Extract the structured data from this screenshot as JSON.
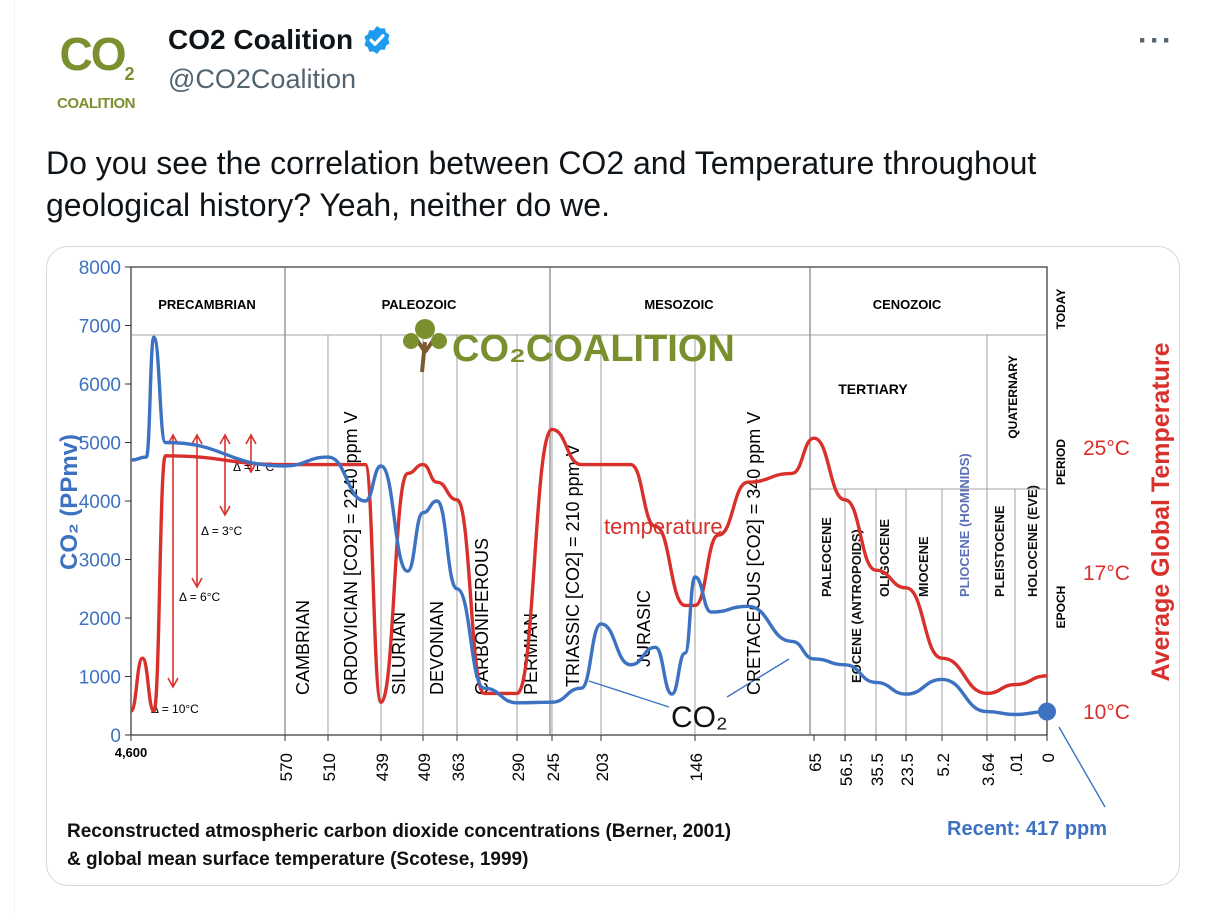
{
  "tweet": {
    "display_name": "CO2 Coalition",
    "handle": "@CO2Coalition",
    "avatar_text": "CO",
    "avatar_sub": "2",
    "avatar_subtext": "COALITION",
    "more_label": "···",
    "text": "Do you see the correlation between CO2 and Temperature throughout geological history? Yeah, neither do we."
  },
  "colors": {
    "co2": "#3d72c2",
    "temperature": "#d8312c",
    "verified": "#1d9bf0",
    "brand": "#7a8f2e"
  },
  "chart_data": {
    "type": "line",
    "ylabel": "CO₂ (PPmv)",
    "ylabel_right": "Average Global Temperature",
    "y_ticks": [
      "8000",
      "7000",
      "6000",
      "5000",
      "4000",
      "3000",
      "2000",
      "1000",
      "0"
    ],
    "ylim": [
      0,
      8000
    ],
    "temp_ticks": [
      "25°C",
      "17°C",
      "10°C"
    ],
    "x_ticks": [
      "4,600",
      "570",
      "510",
      "439",
      "409",
      "363",
      "290",
      "245",
      "203",
      "146",
      "65",
      "56.5",
      "35.5",
      "23.5",
      "5.2",
      "3.64",
      ".01",
      "0"
    ],
    "eras": [
      "PRECAMBRIAN",
      "PALEOZOIC",
      "MESOZOIC",
      "CENOZOIC"
    ],
    "right_labels": [
      "TODAY",
      "PERIOD",
      "EPOCH"
    ],
    "tertiary": "TERTIARY",
    "quaternary": "QUATERNARY",
    "periods": [
      "CAMBRIAN",
      "ORDOVICIAN [CO2] = 2240 ppm V",
      "SILURIAN",
      "DEVONIAN",
      "CARBONIFEROUS",
      "PERMIAN",
      "TRIASSIC [CO2] = 210 ppm V",
      "JURASIC",
      "CRETACEOUS [CO2] = 340 ppm V"
    ],
    "epochs": [
      "PALEOCENE",
      "EOCENE (ANTROPOIDS)",
      "OLIGOCENE",
      "MIOCENE",
      "PLIOCENE (HOMINIDS)",
      "PLEISTOCENE",
      "HOLOCENE (EVE)"
    ],
    "deltas": [
      "Δ = 1°C",
      "Δ = 3°C",
      "Δ = 6°C",
      "Δ = 10°C"
    ],
    "annotation_temperature": "temperature",
    "annotation_co2": "CO₂",
    "watermark": "CO₂COALITION",
    "recent_label": "Recent: 417 ppm",
    "caption_line1": "Reconstructed atmospheric carbon dioxide concentrations (Berner, 2001)",
    "caption_line2": "& global mean surface temperature (Scotese, 1999)",
    "series": [
      {
        "name": "CO₂",
        "points": [
          [
            4600,
            4700
          ],
          [
            4200,
            4750
          ],
          [
            4000,
            6800
          ],
          [
            3700,
            5000
          ],
          [
            570,
            4600
          ],
          [
            510,
            4750
          ],
          [
            460,
            4000
          ],
          [
            439,
            4600
          ],
          [
            420,
            2800
          ],
          [
            409,
            3800
          ],
          [
            390,
            4000
          ],
          [
            363,
            2500
          ],
          [
            330,
            800
          ],
          [
            290,
            550
          ],
          [
            245,
            560
          ],
          [
            220,
            800
          ],
          [
            203,
            1900
          ],
          [
            185,
            1200
          ],
          [
            170,
            1500
          ],
          [
            160,
            700
          ],
          [
            152,
            1400
          ],
          [
            146,
            2700
          ],
          [
            135,
            2100
          ],
          [
            110,
            2200
          ],
          [
            80,
            1600
          ],
          [
            65,
            1300
          ],
          [
            56.5,
            1200
          ],
          [
            35.5,
            900
          ],
          [
            23.5,
            700
          ],
          [
            5.2,
            950
          ],
          [
            3.64,
            400
          ],
          [
            0.01,
            350
          ],
          [
            0,
            400
          ]
        ]
      },
      {
        "name": "temperature",
        "points": [
          [
            4600,
            10
          ],
          [
            4300,
            13
          ],
          [
            4000,
            10
          ],
          [
            3700,
            24.5
          ],
          [
            570,
            24
          ],
          [
            510,
            24
          ],
          [
            460,
            24
          ],
          [
            439,
            10.5
          ],
          [
            420,
            23.5
          ],
          [
            409,
            24
          ],
          [
            390,
            23
          ],
          [
            363,
            22
          ],
          [
            330,
            11
          ],
          [
            290,
            11
          ],
          [
            245,
            26
          ],
          [
            220,
            24
          ],
          [
            203,
            24
          ],
          [
            185,
            24
          ],
          [
            170,
            20.5
          ],
          [
            152,
            16
          ],
          [
            146,
            16
          ],
          [
            130,
            20
          ],
          [
            110,
            23
          ],
          [
            80,
            23.5
          ],
          [
            65,
            25.5
          ],
          [
            56.5,
            22
          ],
          [
            35.5,
            18
          ],
          [
            23.5,
            17
          ],
          [
            5.2,
            13
          ],
          [
            3.64,
            11
          ],
          [
            0.01,
            11.5
          ],
          [
            0,
            12
          ]
        ]
      }
    ]
  }
}
